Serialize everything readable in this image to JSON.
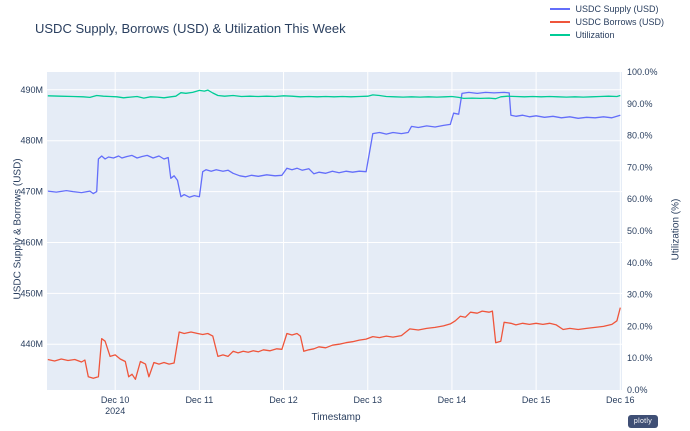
{
  "chart_data": {
    "type": "line",
    "title": "USDC Supply, Borrows (USD) & Utilization This Week",
    "xlabel": "Timestamp",
    "ylabel_left": "USDC Supply & Borrows (USD)",
    "ylabel_right": "Utilization (%)",
    "plot_bg": "#E5ECF6",
    "grid_color": "#ffffff",
    "font_color": "#2a3f5f",
    "legend_position": "top-right",
    "grid": true,
    "x_unit": "day of December 2024 (fractional)",
    "y_left_unit": "million USD",
    "y_right_unit": "percent",
    "x_range": [
      9.19,
      16.02
    ],
    "y_left_range": [
      431,
      493.5
    ],
    "y_right_range": [
      0,
      100
    ],
    "x_ticks": [
      {
        "value": 10,
        "label": "Dec 10",
        "sublabel": "2024"
      },
      {
        "value": 11,
        "label": "Dec 11",
        "sublabel": ""
      },
      {
        "value": 12,
        "label": "Dec 12",
        "sublabel": ""
      },
      {
        "value": 13,
        "label": "Dec 13",
        "sublabel": ""
      },
      {
        "value": 14,
        "label": "Dec 14",
        "sublabel": ""
      },
      {
        "value": 15,
        "label": "Dec 15",
        "sublabel": ""
      },
      {
        "value": 16,
        "label": "Dec 16",
        "sublabel": ""
      }
    ],
    "y_ticks_left": [
      {
        "value": 440,
        "label": "440M"
      },
      {
        "value": 450,
        "label": "450M"
      },
      {
        "value": 460,
        "label": "460M"
      },
      {
        "value": 470,
        "label": "470M"
      },
      {
        "value": 480,
        "label": "480M"
      },
      {
        "value": 490,
        "label": "490M"
      }
    ],
    "y_ticks_right": [
      {
        "value": 0,
        "label": "0.0%"
      },
      {
        "value": 10,
        "label": "10.0%"
      },
      {
        "value": 20,
        "label": "20.0%"
      },
      {
        "value": 30,
        "label": "30.0%"
      },
      {
        "value": 40,
        "label": "40.0%"
      },
      {
        "value": 50,
        "label": "50.0%"
      },
      {
        "value": 60,
        "label": "60.0%"
      },
      {
        "value": 70,
        "label": "70.0%"
      },
      {
        "value": 80,
        "label": "80.0%"
      },
      {
        "value": 90,
        "label": "90.0%"
      },
      {
        "value": 100,
        "label": "100.0%"
      }
    ],
    "series": [
      {
        "name": "USDC Supply (USD)",
        "color": "#636efa",
        "axis": "left",
        "x": [
          9.2,
          9.3,
          9.42,
          9.5,
          9.6,
          9.7,
          9.74,
          9.78,
          9.8,
          9.84,
          9.88,
          9.92,
          9.98,
          10.04,
          10.08,
          10.14,
          10.2,
          10.26,
          10.32,
          10.38,
          10.45,
          10.52,
          10.58,
          10.63,
          10.66,
          10.7,
          10.74,
          10.78,
          10.82,
          10.88,
          10.94,
          11.0,
          11.04,
          11.08,
          11.14,
          11.2,
          11.28,
          11.34,
          11.4,
          11.48,
          11.55,
          11.62,
          11.7,
          11.8,
          11.9,
          11.98,
          12.04,
          12.1,
          12.16,
          12.22,
          12.3,
          12.36,
          12.42,
          12.5,
          12.58,
          12.66,
          12.74,
          12.82,
          12.9,
          12.98,
          13.06,
          13.14,
          13.22,
          13.3,
          13.4,
          13.48,
          13.52,
          13.6,
          13.7,
          13.8,
          13.9,
          13.98,
          14.02,
          14.08,
          14.12,
          14.2,
          14.3,
          14.4,
          14.5,
          14.62,
          14.68,
          14.7,
          14.76,
          14.84,
          14.92,
          15.0,
          15.1,
          15.2,
          15.3,
          15.4,
          15.5,
          15.6,
          15.7,
          15.8,
          15.9,
          16.0
        ],
        "y": [
          470.1,
          469.9,
          470.2,
          470.0,
          469.8,
          470.1,
          469.6,
          470.0,
          476.4,
          477.0,
          476.4,
          476.8,
          476.6,
          477.0,
          476.6,
          476.9,
          477.1,
          476.6,
          476.9,
          477.1,
          476.6,
          477.0,
          476.4,
          476.7,
          472.6,
          473.1,
          472.2,
          469.0,
          469.4,
          468.9,
          469.2,
          469.0,
          473.9,
          474.3,
          474.0,
          474.3,
          474.0,
          474.2,
          473.6,
          473.1,
          472.9,
          473.2,
          473.0,
          473.3,
          473.1,
          473.2,
          474.6,
          474.3,
          474.6,
          474.2,
          474.5,
          473.5,
          473.8,
          473.6,
          474.0,
          473.7,
          474.0,
          473.8,
          474.0,
          473.9,
          481.4,
          481.6,
          481.3,
          481.6,
          481.4,
          481.6,
          482.8,
          482.6,
          482.9,
          482.7,
          483.0,
          483.2,
          485.4,
          485.2,
          489.3,
          489.5,
          489.3,
          489.5,
          489.4,
          489.5,
          489.4,
          485.0,
          484.8,
          485.0,
          484.7,
          484.9,
          484.6,
          484.8,
          484.5,
          484.7,
          484.4,
          484.6,
          484.5,
          484.7,
          484.5,
          485.0
        ]
      },
      {
        "name": "USDC Borrows (USD)",
        "color": "#EF553B",
        "axis": "left",
        "x": [
          9.2,
          9.28,
          9.36,
          9.44,
          9.52,
          9.6,
          9.64,
          9.68,
          9.74,
          9.8,
          9.84,
          9.88,
          9.94,
          10.0,
          10.06,
          10.12,
          10.16,
          10.2,
          10.24,
          10.3,
          10.36,
          10.4,
          10.46,
          10.52,
          10.58,
          10.64,
          10.7,
          10.76,
          10.82,
          10.9,
          10.98,
          11.04,
          11.1,
          11.16,
          11.22,
          11.28,
          11.34,
          11.4,
          11.46,
          11.52,
          11.58,
          11.64,
          11.7,
          11.76,
          11.84,
          11.92,
          11.98,
          12.04,
          12.1,
          12.16,
          12.2,
          12.24,
          12.3,
          12.36,
          12.42,
          12.5,
          12.58,
          12.66,
          12.74,
          12.82,
          12.9,
          12.98,
          13.06,
          13.14,
          13.22,
          13.3,
          13.4,
          13.5,
          13.6,
          13.7,
          13.8,
          13.9,
          13.98,
          14.04,
          14.1,
          14.16,
          14.22,
          14.3,
          14.36,
          14.44,
          14.48,
          14.52,
          14.58,
          14.62,
          14.7,
          14.76,
          14.84,
          14.92,
          15.0,
          15.08,
          15.16,
          15.24,
          15.32,
          15.4,
          15.5,
          15.6,
          15.7,
          15.8,
          15.9,
          15.96,
          16.0
        ],
        "y": [
          437.0,
          436.7,
          437.1,
          436.8,
          437.0,
          436.5,
          436.9,
          433.6,
          433.3,
          433.6,
          441.1,
          440.6,
          437.6,
          437.9,
          437.1,
          436.6,
          433.6,
          434.1,
          433.1,
          436.6,
          436.1,
          433.6,
          436.4,
          436.1,
          436.4,
          436.1,
          436.3,
          442.4,
          442.1,
          442.4,
          442.1,
          441.9,
          442.1,
          441.6,
          437.6,
          437.9,
          437.6,
          438.6,
          438.3,
          438.6,
          438.4,
          438.7,
          438.5,
          438.9,
          438.7,
          439.1,
          439.0,
          442.1,
          441.8,
          442.1,
          441.6,
          438.6,
          438.9,
          439.1,
          439.5,
          439.3,
          439.8,
          440.0,
          440.3,
          440.5,
          440.8,
          441.0,
          441.5,
          441.3,
          441.6,
          441.4,
          441.7,
          443.0,
          442.8,
          443.1,
          443.3,
          443.6,
          444.0,
          444.6,
          445.5,
          445.3,
          446.3,
          446.1,
          446.5,
          446.3,
          446.5,
          440.3,
          440.6,
          444.3,
          444.1,
          443.8,
          444.1,
          443.9,
          444.1,
          443.9,
          444.1,
          443.8,
          442.9,
          443.1,
          442.9,
          443.1,
          443.3,
          443.5,
          443.9,
          444.6,
          447.2
        ]
      },
      {
        "name": "Utilization",
        "color": "#00cc96",
        "axis": "right",
        "x": [
          9.2,
          9.35,
          9.5,
          9.62,
          9.7,
          9.78,
          9.86,
          9.94,
          10.02,
          10.1,
          10.18,
          10.26,
          10.34,
          10.42,
          10.5,
          10.58,
          10.66,
          10.72,
          10.78,
          10.84,
          10.92,
          11.0,
          11.06,
          11.1,
          11.16,
          11.22,
          11.3,
          11.4,
          11.5,
          11.6,
          11.7,
          11.8,
          11.9,
          12.0,
          12.1,
          12.2,
          12.3,
          12.4,
          12.5,
          12.6,
          12.7,
          12.8,
          12.9,
          13.0,
          13.06,
          13.14,
          13.22,
          13.32,
          13.42,
          13.52,
          13.62,
          13.72,
          13.82,
          13.92,
          14.0,
          14.08,
          14.14,
          14.24,
          14.34,
          14.44,
          14.52,
          14.58,
          14.66,
          14.76,
          14.86,
          14.96,
          15.06,
          15.16,
          15.26,
          15.36,
          15.46,
          15.56,
          15.66,
          15.76,
          15.86,
          15.96,
          16.0
        ],
        "y": [
          92.5,
          92.4,
          92.3,
          92.2,
          92.0,
          92.6,
          92.4,
          92.3,
          92.2,
          91.9,
          92.1,
          92.3,
          91.8,
          92.2,
          92.1,
          91.9,
          92.2,
          92.4,
          93.5,
          93.3,
          93.6,
          94.2,
          94.0,
          94.3,
          93.4,
          92.6,
          92.4,
          92.6,
          92.3,
          92.4,
          92.3,
          92.4,
          92.3,
          92.5,
          92.4,
          92.2,
          92.3,
          92.2,
          92.3,
          92.2,
          92.3,
          92.2,
          92.3,
          92.4,
          92.8,
          92.6,
          92.3,
          92.2,
          92.1,
          92.2,
          92.1,
          92.2,
          92.1,
          92.2,
          92.3,
          92.0,
          91.7,
          91.8,
          91.7,
          91.8,
          91.6,
          92.2,
          92.4,
          92.3,
          92.2,
          92.3,
          92.2,
          92.3,
          92.2,
          92.1,
          92.2,
          92.1,
          92.2,
          92.3,
          92.4,
          92.3,
          92.6
        ]
      }
    ],
    "branding": {
      "logo_label": "plotly"
    }
  }
}
